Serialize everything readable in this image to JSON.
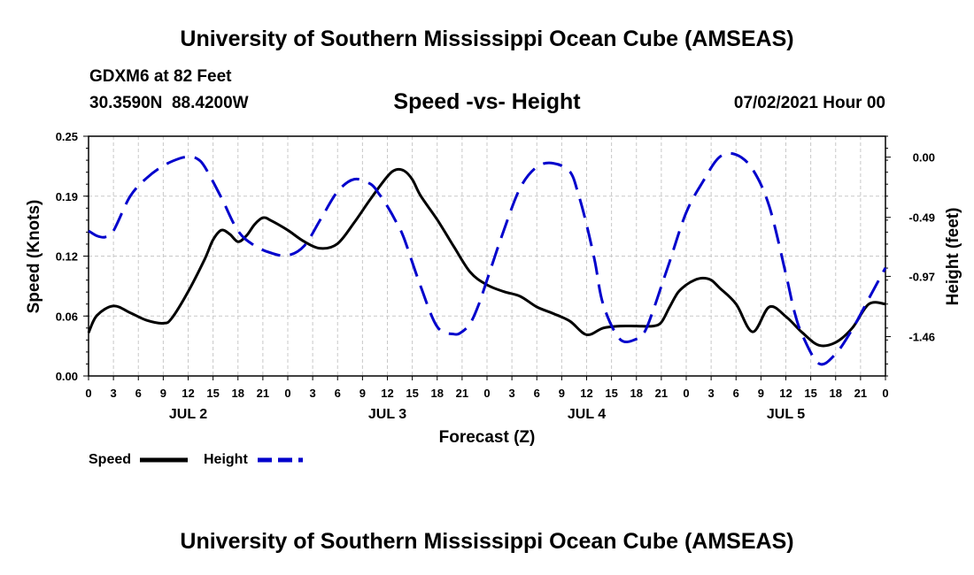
{
  "header": {
    "title_top": "University of Southern Mississippi Ocean Cube (AMSEAS)",
    "title_bottom": "University of Southern Mississippi Ocean Cube (AMSEAS)",
    "station": "GDXM6 at 82 Feet",
    "coords": "30.3590N  88.4200W",
    "chart_title": "Speed -vs- Height",
    "datetime": "07/02/2021 Hour 00"
  },
  "colors": {
    "speed": "#000000",
    "height": "#0000cc",
    "grid": "#c8c8c8"
  },
  "chart_data": {
    "type": "line",
    "title": "Speed -vs- Height",
    "xlabel": "Forecast (Z)",
    "ylabel": "Speed (Knots)",
    "y2label": "Height (feet)",
    "xlim": [
      0,
      96
    ],
    "ylim": [
      0,
      0.25
    ],
    "y2lim": [
      -1.78,
      0.17
    ],
    "x_tick_labels": [
      "0",
      "3",
      "6",
      "9",
      "12",
      "15",
      "18",
      "21",
      "0",
      "3",
      "6",
      "9",
      "12",
      "15",
      "18",
      "21",
      "0",
      "3",
      "6",
      "9",
      "12",
      "15",
      "18",
      "21",
      "0",
      "3",
      "6",
      "9",
      "12",
      "15",
      "18",
      "21",
      "0"
    ],
    "y_ticks": [
      "0.00",
      "0.06",
      "0.12",
      "0.19",
      "0.25"
    ],
    "y_tick_values": [
      0,
      0.0625,
      0.125,
      0.1875,
      0.25
    ],
    "y2_ticks": [
      "0.00",
      "-0.49",
      "-0.97",
      "-1.46"
    ],
    "y2_tick_values": [
      0,
      -0.49,
      -0.97,
      -1.46
    ],
    "day_labels": [
      {
        "label": "JUL 2",
        "x": 12
      },
      {
        "label": "JUL 3",
        "x": 36
      },
      {
        "label": "JUL 4",
        "x": 60
      },
      {
        "label": "JUL 5",
        "x": 84
      }
    ],
    "series": [
      {
        "name": "Speed",
        "axis": "left",
        "style": "solid",
        "x": [
          0,
          1,
          3,
          5,
          7,
          9,
          10,
          12,
          14,
          15,
          16,
          17,
          18,
          19,
          20,
          21,
          22,
          24,
          26,
          28,
          30,
          32,
          34,
          36,
          37,
          38,
          39,
          40,
          42,
          44,
          46,
          48,
          50,
          52,
          54,
          56,
          58,
          60,
          62,
          64,
          66,
          68,
          69,
          70,
          71,
          72,
          73,
          74,
          75,
          76,
          78,
          80,
          82,
          84,
          86,
          88,
          90,
          92,
          94,
          96
        ],
        "values": [
          0.045,
          0.063,
          0.073,
          0.066,
          0.058,
          0.055,
          0.06,
          0.088,
          0.122,
          0.142,
          0.152,
          0.148,
          0.14,
          0.146,
          0.158,
          0.165,
          0.162,
          0.152,
          0.14,
          0.133,
          0.138,
          0.16,
          0.185,
          0.208,
          0.215,
          0.214,
          0.205,
          0.188,
          0.163,
          0.135,
          0.108,
          0.095,
          0.088,
          0.083,
          0.072,
          0.065,
          0.057,
          0.043,
          0.05,
          0.052,
          0.052,
          0.052,
          0.056,
          0.072,
          0.087,
          0.095,
          0.1,
          0.102,
          0.1,
          0.092,
          0.075,
          0.046,
          0.072,
          0.062,
          0.045,
          0.032,
          0.035,
          0.05,
          0.075,
          0.075
        ]
      },
      {
        "name": "Height",
        "axis": "right",
        "style": "dashed",
        "x": [
          0,
          1,
          2,
          3,
          5,
          7,
          9,
          11,
          12,
          13,
          14,
          16,
          18,
          20,
          22,
          24,
          26,
          28,
          30,
          32,
          34,
          35,
          36,
          37,
          38,
          40,
          42,
          44,
          45,
          46,
          47,
          48,
          50,
          52,
          54,
          56,
          58,
          59,
          60,
          61,
          62,
          64,
          66,
          67,
          68,
          69,
          70,
          72,
          74,
          76,
          78,
          80,
          82,
          84,
          85,
          86,
          88,
          90,
          92,
          94,
          96
        ],
        "values": [
          -0.6,
          -0.64,
          -0.65,
          -0.6,
          -0.32,
          -0.17,
          -0.07,
          -0.01,
          0.0,
          -0.01,
          -0.08,
          -0.33,
          -0.6,
          -0.72,
          -0.78,
          -0.8,
          -0.72,
          -0.5,
          -0.28,
          -0.18,
          -0.22,
          -0.3,
          -0.4,
          -0.52,
          -0.66,
          -1.05,
          -1.38,
          -1.44,
          -1.42,
          -1.35,
          -1.2,
          -1.0,
          -0.6,
          -0.25,
          -0.08,
          -0.05,
          -0.12,
          -0.3,
          -0.55,
          -0.85,
          -1.2,
          -1.48,
          -1.48,
          -1.42,
          -1.25,
          -1.05,
          -0.85,
          -0.45,
          -0.2,
          0.0,
          0.02,
          -0.1,
          -0.4,
          -0.95,
          -1.25,
          -1.45,
          -1.68,
          -1.6,
          -1.4,
          -1.15,
          -0.9
        ]
      }
    ],
    "legend": [
      {
        "label": "Speed",
        "style": "solid"
      },
      {
        "label": "Height",
        "style": "dashed"
      }
    ]
  }
}
